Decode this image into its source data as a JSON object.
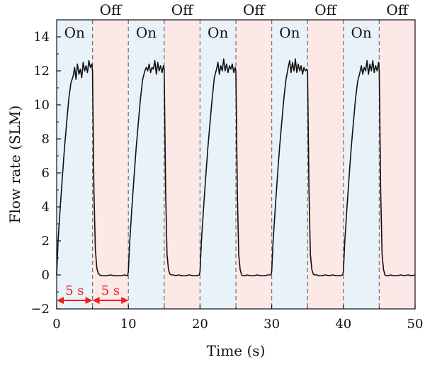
{
  "chart_data": {
    "type": "line",
    "xlabel": "Time (s)",
    "ylabel": "Flow rate (SLM)",
    "xlim": [
      0,
      50
    ],
    "ylim": [
      -2,
      15
    ],
    "xticks": [
      0,
      10,
      20,
      30,
      40,
      50
    ],
    "yticks": [
      -2,
      0,
      2,
      4,
      6,
      8,
      10,
      12,
      14
    ],
    "tick_labels_x": [
      "0",
      "10",
      "20",
      "30",
      "40",
      "50"
    ],
    "tick_labels_y": [
      "−2",
      "0",
      "2",
      "4",
      "6",
      "8",
      "10",
      "12",
      "14"
    ],
    "grid": false,
    "phases": [
      {
        "label": "On",
        "start": 0,
        "end": 5
      },
      {
        "label": "Off",
        "start": 5,
        "end": 10
      },
      {
        "label": "On",
        "start": 10,
        "end": 15
      },
      {
        "label": "Off",
        "start": 15,
        "end": 20
      },
      {
        "label": "On",
        "start": 20,
        "end": 25
      },
      {
        "label": "Off",
        "start": 25,
        "end": 30
      },
      {
        "label": "On",
        "start": 30,
        "end": 35
      },
      {
        "label": "Off",
        "start": 35,
        "end": 40
      },
      {
        "label": "On",
        "start": 40,
        "end": 45
      },
      {
        "label": "Off",
        "start": 45,
        "end": 50
      }
    ],
    "phase_colors": {
      "On": "#eaf2f9",
      "Off": "#fce8e6"
    },
    "annotations": [
      {
        "text": "5 s",
        "from": 0,
        "to": 5,
        "y": -1.5
      },
      {
        "text": "5 s",
        "from": 5,
        "to": 10,
        "y": -1.5
      }
    ],
    "annotation_color": "#e8201f",
    "line_color": "#111111",
    "series": [
      {
        "x": [
          0,
          0.2,
          0.5,
          0.8,
          1.1,
          1.4,
          1.7,
          2.0,
          2.3,
          2.5,
          2.7,
          2.9,
          3.1,
          3.3,
          3.5,
          3.7,
          3.9,
          4.1,
          4.3,
          4.5,
          4.7,
          4.9,
          5.0,
          5.2,
          5.4,
          5.6,
          5.8,
          6.0,
          6.3,
          6.6,
          7.0,
          7.5,
          8.0,
          8.5,
          9.0,
          9.5,
          9.9,
          10.0,
          10.2,
          10.5,
          10.8,
          11.1,
          11.4,
          11.7,
          12.0,
          12.3,
          12.5,
          12.7,
          12.9,
          13.1,
          13.3,
          13.5,
          13.7,
          13.9,
          14.1,
          14.3,
          14.5,
          14.7,
          14.9,
          15.0,
          15.2,
          15.4,
          15.6,
          15.8,
          16.0,
          16.3,
          16.6,
          17.0,
          17.5,
          18.0,
          18.5,
          19.0,
          19.5,
          19.9,
          20.0,
          20.2,
          20.5,
          20.8,
          21.1,
          21.4,
          21.7,
          22.0,
          22.3,
          22.5,
          22.7,
          22.9,
          23.1,
          23.3,
          23.5,
          23.7,
          23.9,
          24.1,
          24.3,
          24.5,
          24.7,
          24.9,
          25.0,
          25.2,
          25.4,
          25.6,
          25.8,
          26.0,
          26.3,
          26.6,
          27.0,
          27.5,
          28.0,
          28.5,
          29.0,
          29.5,
          29.9,
          30.0,
          30.2,
          30.5,
          30.8,
          31.1,
          31.4,
          31.7,
          32.0,
          32.3,
          32.5,
          32.7,
          32.9,
          33.1,
          33.3,
          33.5,
          33.7,
          33.9,
          34.1,
          34.3,
          34.5,
          34.7,
          34.9,
          35.0,
          35.2,
          35.4,
          35.6,
          35.8,
          36.0,
          36.3,
          36.6,
          37.0,
          37.5,
          38.0,
          38.5,
          39.0,
          39.5,
          39.9,
          40.0,
          40.2,
          40.5,
          40.8,
          41.1,
          41.4,
          41.7,
          42.0,
          42.3,
          42.5,
          42.7,
          42.9,
          43.1,
          43.3,
          43.5,
          43.7,
          43.9,
          44.1,
          44.3,
          44.5,
          44.7,
          44.9,
          45.0,
          45.2,
          45.4,
          45.6,
          45.8,
          46.0,
          46.3,
          46.6,
          47.0,
          47.5,
          48.0,
          48.5,
          49.0,
          49.5,
          50.0
        ],
        "y": [
          0,
          2.0,
          4.0,
          5.8,
          7.5,
          9.0,
          10.4,
          11.3,
          11.7,
          12.2,
          11.5,
          12.4,
          11.8,
          12.1,
          11.6,
          12.5,
          12.0,
          12.3,
          11.9,
          12.6,
          12.2,
          12.4,
          12.0,
          5.0,
          1.5,
          0.4,
          0.1,
          0.0,
          -0.05,
          -0.05,
          -0.05,
          0.0,
          -0.05,
          -0.05,
          -0.05,
          0.0,
          -0.05,
          0.2,
          2.0,
          4.0,
          5.8,
          7.5,
          9.0,
          10.4,
          11.5,
          12.0,
          12.2,
          12.0,
          12.4,
          11.9,
          12.2,
          12.1,
          12.6,
          11.8,
          12.5,
          12.0,
          12.3,
          11.9,
          12.3,
          12.1,
          5.0,
          1.2,
          0.3,
          0.05,
          0.0,
          0.0,
          -0.05,
          0.0,
          -0.05,
          -0.05,
          0.0,
          -0.05,
          -0.05,
          0.0,
          0.2,
          2.0,
          4.0,
          5.8,
          7.5,
          9.0,
          10.4,
          11.6,
          12.1,
          12.5,
          11.8,
          12.3,
          12.0,
          12.7,
          12.0,
          12.4,
          11.9,
          12.3,
          12.1,
          12.4,
          11.9,
          12.2,
          12.0,
          5.0,
          1.2,
          0.3,
          0.0,
          -0.05,
          -0.05,
          0.0,
          -0.05,
          -0.05,
          0.0,
          -0.05,
          -0.05,
          0.0,
          0.0,
          0.2,
          2.0,
          4.0,
          5.8,
          7.5,
          9.0,
          10.4,
          11.5,
          12.2,
          12.6,
          11.9,
          12.5,
          12.0,
          12.7,
          11.9,
          12.4,
          12.0,
          12.3,
          11.8,
          12.2,
          12.0,
          12.1,
          12.0,
          5.0,
          1.2,
          0.3,
          0.05,
          0.0,
          0.0,
          -0.05,
          -0.05,
          0.0,
          -0.05,
          0.0,
          -0.05,
          -0.05,
          0.0,
          0.2,
          2.0,
          4.0,
          5.8,
          7.5,
          9.0,
          10.4,
          11.4,
          11.9,
          12.3,
          11.8,
          12.2,
          12.0,
          12.6,
          11.8,
          12.4,
          12.0,
          12.6,
          11.9,
          12.3,
          12.0,
          12.5,
          12.0,
          5.0,
          1.2,
          0.3,
          0.0,
          -0.05,
          -0.05,
          0.0,
          -0.05,
          -0.05,
          0.0,
          -0.05,
          0.0,
          -0.05,
          0.0
        ]
      }
    ]
  }
}
